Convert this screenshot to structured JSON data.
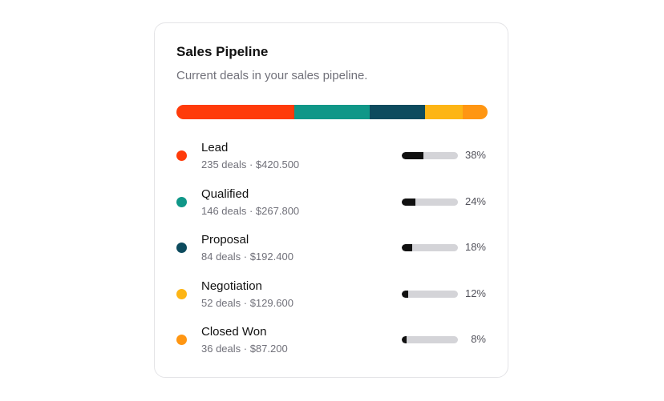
{
  "card": {
    "title": "Sales Pipeline",
    "subtitle": "Current deals in your sales pipeline."
  },
  "stages": [
    {
      "name": "Lead",
      "meta": "235 deals · $420.500",
      "percent_label": "38%",
      "percent": 38,
      "color": "#ff3b0a"
    },
    {
      "name": "Qualified",
      "meta": "146 deals · $267.800",
      "percent_label": "24%",
      "percent": 24,
      "color": "#0f9788"
    },
    {
      "name": "Proposal",
      "meta": "84 deals · $192.400",
      "percent_label": "18%",
      "percent": 18,
      "color": "#0d4b5e"
    },
    {
      "name": "Negotiation",
      "meta": "52 deals · $129.600",
      "percent_label": "12%",
      "percent": 12,
      "color": "#fdb515"
    },
    {
      "name": "Closed Won",
      "meta": "36 deals · $87.200",
      "percent_label": "8%",
      "percent": 8,
      "color": "#ff9612"
    }
  ],
  "colors": {
    "progress_fill": "#111111",
    "progress_track": "#d4d4d8"
  }
}
